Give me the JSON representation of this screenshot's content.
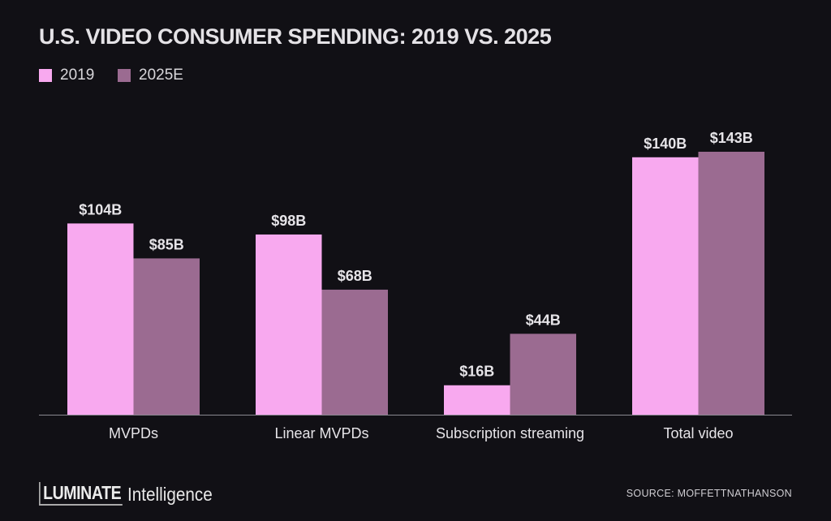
{
  "chart_data": {
    "type": "bar",
    "title": "U.S. VIDEO CONSUMER SPENDING: 2019 VS. 2025",
    "categories": [
      "MVPDs",
      "Linear MVPDs",
      "Subscription streaming",
      "Total video"
    ],
    "series": [
      {
        "name": "2019",
        "values": [
          104,
          98,
          16,
          140
        ],
        "labels": [
          "$104B",
          "$98B",
          "$16B",
          "$140B"
        ],
        "color": "#f8a9ef"
      },
      {
        "name": "2025E",
        "values": [
          85,
          68,
          44,
          143
        ],
        "labels": [
          "$85B",
          "$68B",
          "$44B",
          "$143B"
        ],
        "color": "#9b6b91"
      }
    ],
    "unit": "$B",
    "ylim": [
      0,
      143
    ],
    "grid": false,
    "legend": "top-left"
  },
  "footer": {
    "logo_primary": "LUMINATE",
    "logo_secondary": "Intelligence",
    "source": "SOURCE: MOFFETTNATHANSON"
  },
  "colors": {
    "background": "#111015",
    "text": "#e4e2e6",
    "axis": "#8a8890"
  }
}
